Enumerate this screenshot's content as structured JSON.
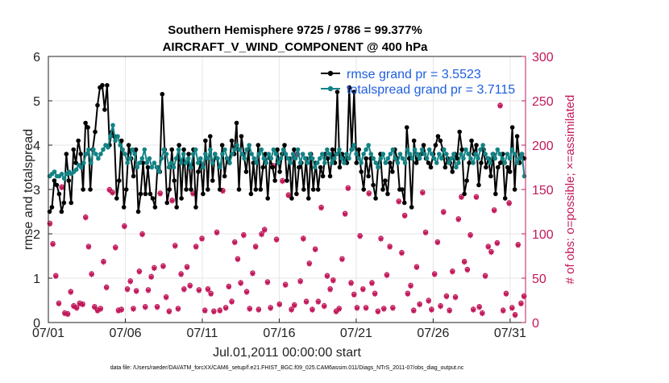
{
  "chart_data": {
    "type": "line",
    "title": "Southern Hemisphere 9725 / 9786 = 99.377%",
    "subtitle": "AIRCRAFT_V_WIND_COMPONENT @ 400 hPa",
    "xlabel": "Jul.01,2011 00:00:00 start",
    "ylabel": "rmse and totalspread",
    "y2label": "# of obs: o=possible; ×=assimilated",
    "footnote": "data file: /Users/raeder/DAI/ATM_forcXX/CAM6_setup/f.e21.FHIST_BGC.f09_025.CAM6assim.011/Diags_NTrS_2011-07/obs_diag_output.nc",
    "xlim": [
      0,
      31
    ],
    "ylim": [
      0,
      6
    ],
    "y2lim": [
      0,
      300
    ],
    "xticks": [
      0,
      5,
      10,
      15,
      20,
      25,
      30
    ],
    "xticklabels": [
      "07/01",
      "07/06",
      "07/11",
      "07/16",
      "07/21",
      "07/26",
      "07/31"
    ],
    "yticks": [
      0,
      1,
      2,
      3,
      4,
      5,
      6
    ],
    "y2ticks": [
      0,
      50,
      100,
      150,
      200,
      250,
      300
    ],
    "legend_position": "top-right",
    "series": [
      {
        "name": "rmse grand pr = 3.5523",
        "color": "#000000",
        "values": [
          2.5,
          2.6,
          3.2,
          3.1,
          2.9,
          2.5,
          2.7,
          3.8,
          3.2,
          2.7,
          3.9,
          3.6,
          4.1,
          3.8,
          3.0,
          4.5,
          4.4,
          3.0,
          3.9,
          4.3,
          4.9,
          5.3,
          5.35,
          4.8,
          5.35,
          4.0,
          4.3,
          4.2,
          2.8,
          3.2,
          4.1,
          2.6,
          3.0,
          4.0,
          3.7,
          3.3,
          3.9,
          2.5,
          2.9,
          3.6,
          2.9,
          3.5,
          2.9,
          2.8,
          2.6,
          3.5,
          3.4,
          5.15,
          3.9,
          2.7,
          3.0,
          3.9,
          3.2,
          2.6,
          4.0,
          2.8,
          3.9,
          3.0,
          3.8,
          3.0,
          3.9,
          2.6,
          3.4,
          3.6,
          2.9,
          4.1,
          3.0,
          4.2,
          3.2,
          3.8,
          3.7,
          3.0,
          4.0,
          3.3,
          3.7,
          3.6,
          4.1,
          3.8,
          4.5,
          3.0,
          4.2,
          3.8,
          3.4,
          3.9,
          2.9,
          3.6,
          3.0,
          4.0,
          3.0,
          3.5,
          3.8,
          2.8,
          3.7,
          3.5,
          3.2,
          3.9,
          3.4,
          3.8,
          4.0,
          3.2,
          3.7,
          2.8,
          3.9,
          2.9,
          3.5,
          3.6,
          3.0,
          3.7,
          2.8,
          3.8,
          3.0,
          3.6,
          3.0,
          3.5,
          3.3,
          3.8,
          3.7,
          3.3,
          3.9,
          3.6,
          5.2,
          3.5,
          3.8,
          3.7,
          3.6,
          5.3,
          3.9,
          5.2,
          3.6,
          3.9,
          3.4,
          3.0,
          3.7,
          3.3,
          3.7,
          3.1,
          2.8,
          3.5,
          3.8,
          3.0,
          3.2,
          2.9,
          3.6,
          3.4,
          3.9,
          3.7,
          3.0,
          3.0,
          2.7,
          4.4,
          3.7,
          2.6,
          4.1,
          3.6,
          3.7,
          3.8,
          4.0,
          3.7,
          3.6,
          3.5,
          3.8,
          4.0,
          4.2,
          4.1,
          3.9,
          3.5,
          3.7,
          3.6,
          3.4,
          3.8,
          3.7,
          4.3,
          3.9,
          2.9,
          3.2,
          3.6,
          4.1,
          3.8,
          4.0,
          3.1,
          3.6,
          3.9,
          3.5,
          3.7,
          3.3,
          3.8,
          2.9,
          3.5,
          3.6,
          3.8,
          2.8,
          3.5,
          3.4,
          4.4,
          3.0,
          4.2,
          3.6,
          3.8,
          3.7
        ]
      },
      {
        "name": "totalspread grand pr = 3.7115",
        "color": "#138385",
        "values": [
          3.3,
          3.35,
          3.4,
          3.3,
          3.3,
          3.35,
          3.25,
          3.35,
          3.4,
          3.35,
          3.4,
          3.45,
          3.55,
          3.5,
          3.6,
          3.8,
          3.9,
          3.6,
          3.9,
          3.8,
          3.7,
          3.8,
          3.9,
          4.0,
          3.95,
          4.2,
          4.45,
          4.1,
          4.2,
          4.0,
          3.9,
          3.8,
          3.6,
          3.7,
          3.9,
          3.8,
          3.5,
          3.6,
          3.7,
          3.9,
          3.6,
          3.7,
          3.5,
          3.6,
          3.5,
          3.4,
          3.7,
          3.9,
          3.8,
          3.5,
          3.6,
          3.5,
          3.7,
          3.9,
          3.6,
          3.8,
          3.6,
          3.7,
          3.5,
          3.8,
          3.9,
          3.6,
          3.7,
          3.5,
          3.8,
          3.7,
          3.9,
          3.6,
          3.8,
          3.7,
          3.5,
          3.8,
          3.9,
          3.7,
          3.6,
          3.8,
          3.9,
          4.0,
          3.9,
          3.8,
          3.7,
          3.9,
          4.0,
          3.8,
          3.7,
          3.6,
          3.8,
          3.9,
          3.7,
          3.6,
          3.8,
          3.7,
          3.9,
          3.8,
          3.6,
          3.7,
          3.9,
          3.8,
          3.7,
          3.6,
          3.8,
          3.7,
          3.9,
          3.6,
          3.8,
          3.7,
          3.6,
          3.8,
          3.7,
          3.5,
          3.6,
          3.7,
          3.8,
          3.6,
          3.9,
          3.8,
          3.6,
          3.7,
          3.8,
          3.9,
          3.7,
          3.6,
          3.8,
          3.7,
          3.9,
          4.0,
          3.8,
          3.7,
          3.6,
          3.8,
          3.9,
          4.0,
          3.8,
          3.7,
          3.6,
          3.5,
          3.7,
          3.8,
          3.6,
          3.7,
          3.8,
          3.9,
          3.7,
          3.6,
          3.8,
          3.7,
          3.6,
          3.9,
          3.8,
          3.7,
          3.9,
          3.8,
          3.7,
          3.9,
          3.8,
          3.7,
          3.9,
          3.8,
          3.7,
          3.6,
          3.8,
          3.7,
          3.9,
          3.8,
          3.6,
          3.7,
          3.8,
          3.5,
          3.6,
          3.8,
          3.7,
          3.9,
          3.8,
          3.7,
          3.6,
          3.8,
          3.7,
          3.9,
          4.0,
          3.8,
          3.7,
          3.6,
          3.8,
          3.7,
          3.9,
          3.8,
          3.7,
          3.6,
          3.8,
          3.7,
          3.9,
          3.8,
          3.6,
          3.7,
          3.8,
          3.3
        ]
      }
    ],
    "obs_possible": [
      112,
      89,
      53,
      22,
      153,
      11,
      10,
      35,
      19,
      17,
      22,
      21,
      119,
      86,
      55,
      18,
      14,
      16,
      69,
      40,
      150,
      147,
      85,
      14,
      15,
      109,
      38,
      47,
      16,
      36,
      58,
      100,
      18,
      37,
      52,
      62,
      18,
      146,
      64,
      29,
      13,
      138,
      87,
      16,
      55,
      38,
      63,
      42,
      146,
      86,
      37,
      95,
      14,
      38,
      33,
      13,
      102,
      14,
      149,
      17,
      41,
      24,
      91,
      72,
      45,
      99,
      35,
      16,
      56,
      86,
      15,
      100,
      105,
      46,
      17,
      177,
      94,
      21,
      160,
      43,
      144,
      15,
      20,
      190,
      47,
      95,
      24,
      67,
      15,
      83,
      24,
      130,
      19,
      53,
      38,
      48,
      13,
      16,
      72,
      123,
      152,
      45,
      32,
      17,
      98,
      38,
      17,
      146,
      45,
      33,
      13,
      95,
      16,
      54,
      86,
      17,
      185,
      137,
      79,
      121,
      33,
      42,
      14,
      63,
      21,
      147,
      102,
      25,
      15,
      55,
      91,
      19,
      125,
      30,
      14,
      58,
      29,
      117,
      142,
      69,
      60,
      99,
      15,
      142,
      18,
      11,
      53,
      86,
      80,
      127,
      90,
      245,
      14,
      33,
      135,
      17,
      9,
      88,
      22,
      30
    ],
    "obs_assimilated": [
      111,
      88,
      52,
      21,
      152,
      10,
      9,
      34,
      18,
      16,
      21,
      20,
      118,
      85,
      54,
      17,
      13,
      15,
      68,
      39,
      149,
      146,
      84,
      13,
      14,
      108,
      37,
      46,
      15,
      35,
      57,
      99,
      17,
      36,
      51,
      61,
      17,
      145,
      63,
      28,
      12,
      137,
      86,
      15,
      54,
      37,
      62,
      41,
      145,
      85,
      36,
      94,
      13,
      37,
      32,
      12,
      101,
      13,
      148,
      16,
      40,
      23,
      90,
      71,
      44,
      98,
      34,
      15,
      55,
      85,
      14,
      99,
      104,
      45,
      16,
      176,
      93,
      20,
      159,
      42,
      143,
      14,
      19,
      189,
      46,
      94,
      23,
      66,
      14,
      82,
      23,
      129,
      18,
      52,
      37,
      47,
      12,
      15,
      71,
      122,
      151,
      44,
      31,
      16,
      97,
      37,
      16,
      145,
      44,
      32,
      12,
      94,
      15,
      53,
      85,
      16,
      184,
      136,
      78,
      120,
      32,
      41,
      13,
      62,
      20,
      146,
      101,
      24,
      14,
      54,
      90,
      18,
      124,
      29,
      13,
      57,
      28,
      116,
      141,
      68,
      59,
      98,
      14,
      141,
      17,
      10,
      52,
      85,
      79,
      126,
      89,
      244,
      13,
      32,
      134,
      16,
      8,
      87,
      21,
      29
    ]
  }
}
